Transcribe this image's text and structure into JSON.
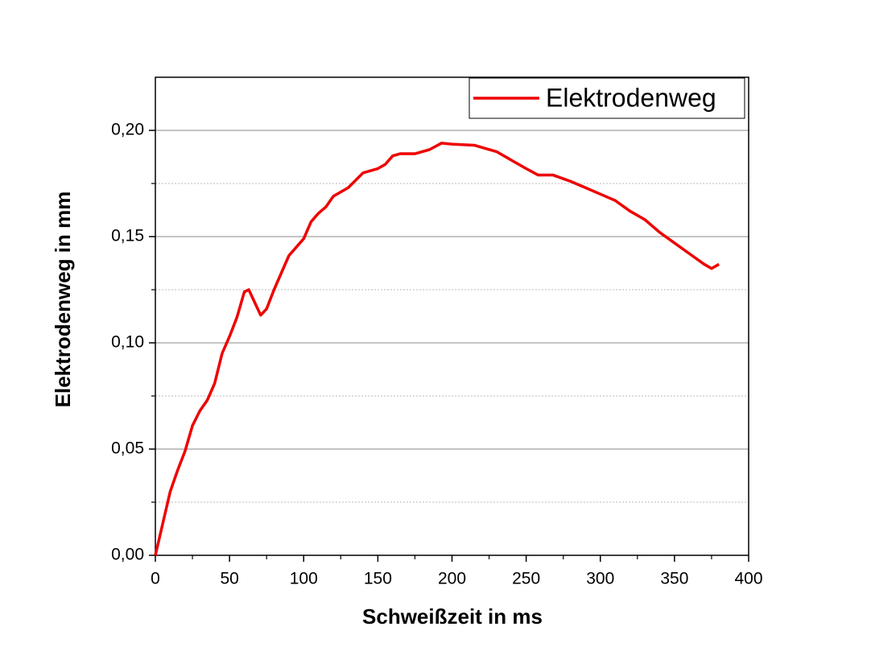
{
  "chart_data": {
    "type": "line",
    "x_label": "Schweißzeit in ms",
    "y_label": "Elektrodenweg in mm",
    "x": [
      0,
      5,
      10,
      15,
      20,
      25,
      30,
      35,
      40,
      45,
      50,
      55,
      60,
      63,
      67,
      71,
      75,
      80,
      85,
      90,
      95,
      100,
      105,
      110,
      115,
      120,
      130,
      140,
      150,
      155,
      160,
      165,
      175,
      185,
      193,
      200,
      215,
      230,
      240,
      250,
      258,
      268,
      280,
      290,
      300,
      310,
      320,
      330,
      340,
      350,
      360,
      370,
      375,
      380
    ],
    "series": [
      {
        "name": "Elektrodenweg",
        "color": "#ee0000",
        "values": [
          0.0,
          0.015,
          0.03,
          0.04,
          0.049,
          0.061,
          0.068,
          0.073,
          0.081,
          0.095,
          0.103,
          0.112,
          0.124,
          0.125,
          0.119,
          0.113,
          0.116,
          0.125,
          0.133,
          0.141,
          0.145,
          0.149,
          0.157,
          0.161,
          0.164,
          0.169,
          0.173,
          0.18,
          0.182,
          0.184,
          0.188,
          0.189,
          0.189,
          0.191,
          0.194,
          0.1935,
          0.193,
          0.19,
          0.186,
          0.182,
          0.179,
          0.179,
          0.176,
          0.173,
          0.17,
          0.167,
          0.162,
          0.158,
          0.152,
          0.147,
          0.142,
          0.137,
          0.135,
          0.137
        ]
      }
    ],
    "xlim": [
      0,
      400
    ],
    "xticks": [
      0,
      50,
      100,
      150,
      200,
      250,
      300,
      350,
      400
    ],
    "ylim": [
      0,
      0.225
    ],
    "yticks": [
      {
        "value": 0,
        "label": "0,00"
      },
      {
        "value": 0.05,
        "label": "0,05"
      },
      {
        "value": 0.1,
        "label": "0,10"
      },
      {
        "value": 0.15,
        "label": "0,15"
      },
      {
        "value": 0.2,
        "label": "0,20"
      }
    ],
    "grid": true,
    "legend": "upper right"
  }
}
